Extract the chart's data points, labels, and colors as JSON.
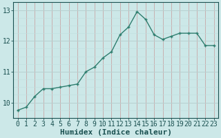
{
  "x": [
    0,
    1,
    2,
    3,
    4,
    5,
    6,
    7,
    8,
    9,
    10,
    11,
    12,
    13,
    14,
    15,
    16,
    17,
    18,
    19,
    20,
    21,
    22,
    23
  ],
  "y": [
    9.75,
    9.85,
    10.2,
    10.45,
    10.45,
    10.5,
    10.55,
    10.6,
    11.0,
    11.15,
    11.45,
    11.65,
    12.2,
    12.45,
    12.95,
    12.7,
    12.2,
    12.05,
    12.15,
    12.25,
    12.25,
    12.25,
    11.85,
    11.85
  ],
  "line_color": "#2e7d6e",
  "marker": "+",
  "bg_color": "#cce8e8",
  "grid_color_major_x": "#c8b0b0",
  "grid_color_major_y": "#b8d0d0",
  "grid_color_minor": "#c0dede",
  "xlabel": "Humidex (Indice chaleur)",
  "ylim_min": 9.5,
  "ylim_max": 13.25,
  "xlim_min": -0.5,
  "xlim_max": 23.5,
  "yticks": [
    10,
    11,
    12,
    13
  ],
  "xticks": [
    0,
    1,
    2,
    3,
    4,
    5,
    6,
    7,
    8,
    9,
    10,
    11,
    12,
    13,
    14,
    15,
    16,
    17,
    18,
    19,
    20,
    21,
    22,
    23
  ],
  "font_color": "#1a5050",
  "font_size": 7,
  "label_font_size": 8,
  "linewidth": 1.0,
  "markersize": 3.5,
  "markeredgewidth": 1.0
}
